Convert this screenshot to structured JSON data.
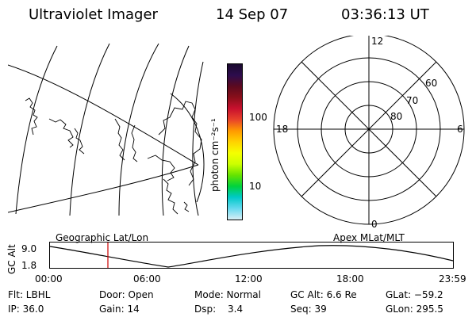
{
  "header": {
    "title": "Ultraviolet Imager",
    "date": "14 Sep 07",
    "time": "03:36:13 UT"
  },
  "colorbar": {
    "unit_label": "photon cm⁻²s⁻¹",
    "tick_100": "100",
    "tick_10": "10",
    "colors": [
      "#1a0a2e",
      "#2d0c4d",
      "#5c0a1f",
      "#8a0f1a",
      "#c8102e",
      "#e8432a",
      "#ff9900",
      "#ffd200",
      "#f5ff00",
      "#ccff00",
      "#66e300",
      "#00d23c",
      "#00c9c9",
      "#66d9ef",
      "#d8eef5"
    ]
  },
  "polar": {
    "mlt_12": "12",
    "mlt_18": "18",
    "mlt_6": "6",
    "mlt_0": "0",
    "lat_60": "60",
    "lat_70": "70",
    "lat_80": "80"
  },
  "timeline": {
    "left_label": "Geographic Lat/Lon",
    "right_label": "Apex MLat/MLT",
    "y_title": "GC Alt",
    "y_top": "9.0",
    "y_bottom": "1.8",
    "x_ticks": [
      "00:00",
      "06:00",
      "12:00",
      "18:00",
      "23:59"
    ],
    "marker_color": "#cc0000",
    "orbit_color": "#000000"
  },
  "info": {
    "flt": "Flt: LBHL",
    "ip": "IP: 36.0",
    "door": "Door: Open",
    "gain": "Gain: 14",
    "mode": "Mode: Normal",
    "dsp_label": "Dsp:",
    "dsp_value": "3.4",
    "gc_alt": "GC Alt: 6.6 Re",
    "seq": "Seq: 39",
    "glat": "GLat: −59.2",
    "glon": "GLon: 295.5"
  }
}
